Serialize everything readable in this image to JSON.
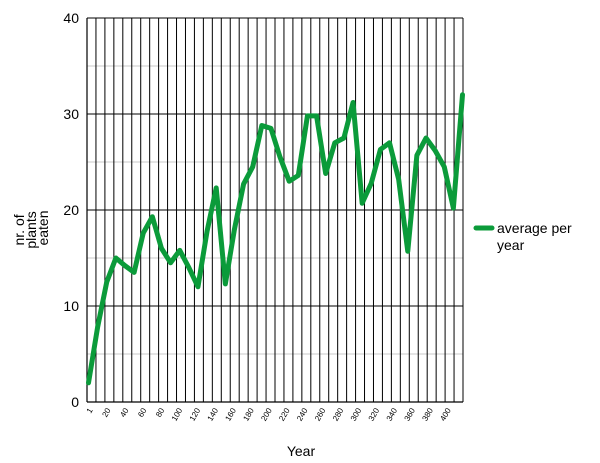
{
  "chart_data": {
    "type": "line",
    "title": "",
    "xlabel": "Year",
    "ylabel_lines": [
      "nr. of",
      "plants",
      "eaten"
    ],
    "ylim": [
      0,
      40
    ],
    "y_ticks": [
      0,
      10,
      20,
      30,
      40
    ],
    "x_tick_labels": [
      "1",
      "20",
      "40",
      "60",
      "80",
      "100",
      "120",
      "140",
      "160",
      "180",
      "200",
      "220",
      "240",
      "260",
      "280",
      "300",
      "320",
      "340",
      "360",
      "380",
      "400"
    ],
    "grid": true,
    "legend_position": "right",
    "series": [
      {
        "name": "average per year",
        "color": "#0b9b3a",
        "values": [
          2.0,
          7.8,
          12.5,
          15.0,
          14.2,
          13.5,
          17.6,
          19.3,
          16.0,
          14.5,
          15.8,
          14.0,
          12.0,
          17.8,
          22.3,
          12.3,
          18.0,
          22.7,
          24.5,
          28.8,
          28.5,
          25.5,
          23.0,
          23.6,
          29.8,
          29.8,
          23.8,
          27.0,
          27.5,
          31.2,
          20.7,
          22.8,
          26.3,
          27.0,
          23.2,
          15.7,
          25.7,
          27.5,
          26.2,
          24.5,
          20.2,
          32.0
        ]
      }
    ]
  }
}
